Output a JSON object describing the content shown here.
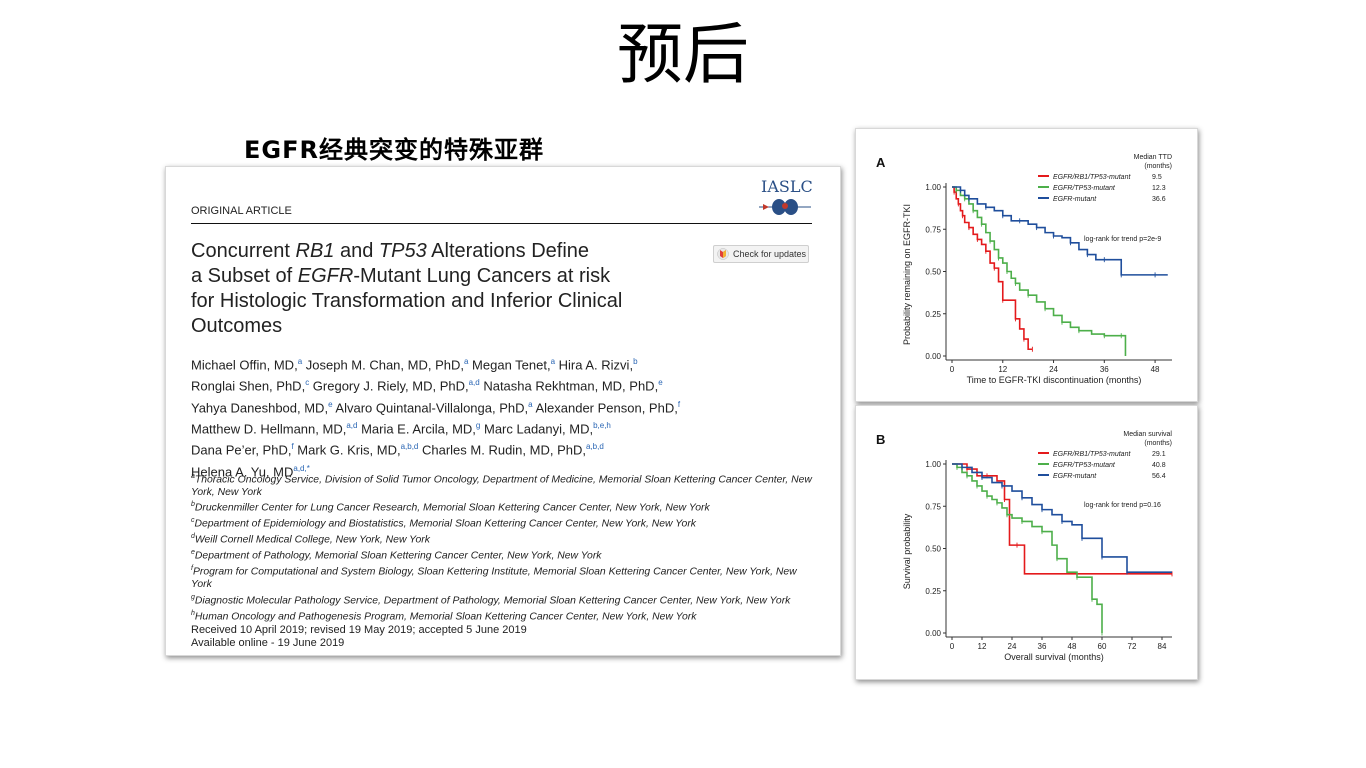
{
  "slide": {
    "title": "预后",
    "subtitle": "EGFR经典突变的特殊亚群"
  },
  "paper": {
    "publisher": "IASLC",
    "article_type": "ORIGINAL ARTICLE",
    "title_parts": [
      "Concurrent ",
      "RB1",
      " and ",
      "TP53",
      " Alterations Define",
      "a Subset of ",
      "EGFR",
      "-Mutant Lung Cancers at risk",
      "for Histologic Transformation and Inferior Clinical",
      "Outcomes"
    ],
    "check_updates": "Check for updates",
    "author_lines": [
      [
        [
          "Michael Offin, MD,",
          "a"
        ],
        [
          " Joseph M. Chan, MD, PhD,",
          "a"
        ],
        [
          " Megan Tenet,",
          "a"
        ],
        [
          " Hira A. Rizvi,",
          "b"
        ]
      ],
      [
        [
          "Ronglai Shen, PhD,",
          "c"
        ],
        [
          " Gregory J. Riely, MD, PhD,",
          "a,d"
        ],
        [
          " Natasha Rekhtman, MD, PhD,",
          "e"
        ]
      ],
      [
        [
          "Yahya Daneshbod, MD,",
          "e"
        ],
        [
          " Alvaro Quintanal-Villalonga, PhD,",
          "a"
        ],
        [
          " Alexander Penson, PhD,",
          "f"
        ]
      ],
      [
        [
          "Matthew D. Hellmann, MD,",
          "a,d"
        ],
        [
          " Maria E. Arcila, MD,",
          "g"
        ],
        [
          " Marc Ladanyi, MD,",
          "b,e,h"
        ]
      ],
      [
        [
          "Dana Pe’er, PhD,",
          "f"
        ],
        [
          " Mark G. Kris, MD,",
          "a,b,d"
        ],
        [
          " Charles M. Rudin, MD, PhD,",
          "a,b,d"
        ]
      ],
      [
        [
          "Helena A. Yu, MD",
          "a,d,*"
        ]
      ]
    ],
    "affiliations": [
      {
        "sup": "a",
        "text": "Thoracic Oncology Service, Division of Solid Tumor Oncology, Department of Medicine, Memorial Sloan Kettering Cancer Center, New York, New York"
      },
      {
        "sup": "b",
        "text": "Druckenmiller Center for Lung Cancer Research, Memorial Sloan Kettering Cancer Center, New York, New York"
      },
      {
        "sup": "c",
        "text": "Department of Epidemiology and Biostatistics, Memorial Sloan Kettering Cancer Center, New York, New York"
      },
      {
        "sup": "d",
        "text": "Weill Cornell Medical College, New York, New York"
      },
      {
        "sup": "e",
        "text": "Department of Pathology, Memorial Sloan Kettering Cancer Center, New York, New York"
      },
      {
        "sup": "f",
        "text": "Program for Computational and System Biology, Sloan Kettering Institute, Memorial Sloan Kettering Cancer Center, New York, New York"
      },
      {
        "sup": "g",
        "text": "Diagnostic Molecular Pathology Service, Department of Pathology, Memorial Sloan Kettering Cancer Center, New York, New York"
      },
      {
        "sup": "h",
        "text": "Human Oncology and Pathogenesis Program, Memorial Sloan Kettering Cancer Center, New York, New York"
      }
    ],
    "received": "Received 10 April 2019; revised 19 May 2019; accepted 5 June 2019",
    "available": "Available online - 19 June 2019"
  },
  "colors": {
    "red": "#e41a1c",
    "green": "#4daf4a",
    "blue": "#1f4e9c",
    "iaslc_blue": "#2a4f86"
  },
  "chart_data": [
    {
      "type": "line",
      "panel_label": "A",
      "ylabel": "Probability remaining on EGFR-TKI",
      "xlabel": "Time to EGFR-TKI discontinuation (months)",
      "legend_title": "Median TTD\n(months)",
      "annotation": "log-rank for trend p=2e-9",
      "xticks": [
        0,
        12,
        24,
        36,
        48
      ],
      "yticks": [
        "0.00",
        "0.25",
        "0.50",
        "0.75",
        "1.00"
      ],
      "xlim": [
        0,
        52
      ],
      "ylim": [
        0,
        1
      ],
      "series": [
        {
          "name": "EGFR/RB1/TP53-mutant",
          "median": "9.5",
          "color": "#e41a1c",
          "x": [
            0,
            0.5,
            1,
            1.5,
            2,
            2.5,
            3,
            4,
            5,
            6,
            7,
            8,
            9,
            10,
            11,
            12,
            14,
            15,
            16,
            17,
            18,
            19
          ],
          "y": [
            1.0,
            0.97,
            0.93,
            0.9,
            0.86,
            0.83,
            0.79,
            0.76,
            0.72,
            0.69,
            0.66,
            0.62,
            0.55,
            0.52,
            0.44,
            0.33,
            0.33,
            0.22,
            0.16,
            0.1,
            0.04,
            0.04
          ]
        },
        {
          "name": "EGFR/TP53-mutant",
          "median": "12.3",
          "color": "#4daf4a",
          "x": [
            0,
            1,
            2,
            3,
            4,
            5,
            6,
            7,
            8,
            9,
            10,
            11,
            12,
            13,
            14,
            15,
            16,
            18,
            20,
            22,
            24,
            26,
            28,
            30,
            33,
            36,
            38,
            40,
            41
          ],
          "y": [
            1.0,
            0.98,
            0.95,
            0.93,
            0.9,
            0.86,
            0.82,
            0.78,
            0.73,
            0.68,
            0.63,
            0.58,
            0.55,
            0.5,
            0.46,
            0.43,
            0.39,
            0.36,
            0.32,
            0.28,
            0.24,
            0.2,
            0.17,
            0.15,
            0.13,
            0.12,
            0.12,
            0.12,
            0.0
          ]
        },
        {
          "name": "EGFR-mutant",
          "median": "36.6",
          "color": "#1f4e9c",
          "x": [
            0,
            2,
            3,
            4,
            6,
            8,
            10,
            12,
            14,
            16,
            18,
            20,
            22,
            24,
            26,
            28,
            30,
            32,
            34,
            36,
            38,
            40,
            44,
            48,
            51
          ],
          "y": [
            1.0,
            0.98,
            0.95,
            0.93,
            0.9,
            0.88,
            0.86,
            0.83,
            0.8,
            0.8,
            0.78,
            0.76,
            0.73,
            0.71,
            0.7,
            0.67,
            0.63,
            0.6,
            0.57,
            0.57,
            0.57,
            0.48,
            0.48,
            0.48,
            0.48
          ]
        }
      ]
    },
    {
      "type": "line",
      "panel_label": "B",
      "ylabel": "Survival probability",
      "xlabel": "Overall survival (months)",
      "legend_title": "Median survival\n(months)",
      "annotation": "log-rank for trend p=0.16",
      "xticks": [
        0,
        12,
        24,
        36,
        48,
        60,
        72,
        84
      ],
      "yticks": [
        "0.00",
        "0.25",
        "0.50",
        "0.75",
        "1.00"
      ],
      "xlim": [
        0,
        88
      ],
      "ylim": [
        0,
        1
      ],
      "series": [
        {
          "name": "EGFR/RB1/TP53-mutant",
          "median": "29.1",
          "color": "#e41a1c",
          "x": [
            0,
            6,
            10,
            14,
            18,
            21,
            23,
            26,
            29,
            88
          ],
          "y": [
            1.0,
            0.97,
            0.93,
            0.93,
            0.9,
            0.79,
            0.52,
            0.52,
            0.35,
            0.35
          ]
        },
        {
          "name": "EGFR/TP53-mutant",
          "median": "40.8",
          "color": "#4daf4a",
          "x": [
            0,
            2,
            4,
            6,
            8,
            10,
            12,
            14,
            16,
            18,
            20,
            22,
            24,
            28,
            32,
            36,
            40,
            42,
            46,
            50,
            54,
            56,
            58,
            60
          ],
          "y": [
            1.0,
            0.98,
            0.95,
            0.93,
            0.9,
            0.87,
            0.84,
            0.81,
            0.79,
            0.77,
            0.74,
            0.7,
            0.68,
            0.66,
            0.63,
            0.6,
            0.52,
            0.44,
            0.36,
            0.33,
            0.33,
            0.2,
            0.17,
            0.0
          ]
        },
        {
          "name": "EGFR-mutant",
          "median": "56.4",
          "color": "#1f4e9c",
          "x": [
            0,
            4,
            8,
            12,
            16,
            20,
            24,
            28,
            32,
            36,
            40,
            44,
            48,
            52,
            56,
            60,
            66,
            70,
            88
          ],
          "y": [
            1.0,
            0.98,
            0.95,
            0.92,
            0.89,
            0.87,
            0.84,
            0.8,
            0.76,
            0.73,
            0.7,
            0.66,
            0.64,
            0.56,
            0.56,
            0.45,
            0.45,
            0.36,
            0.36
          ]
        }
      ]
    }
  ]
}
